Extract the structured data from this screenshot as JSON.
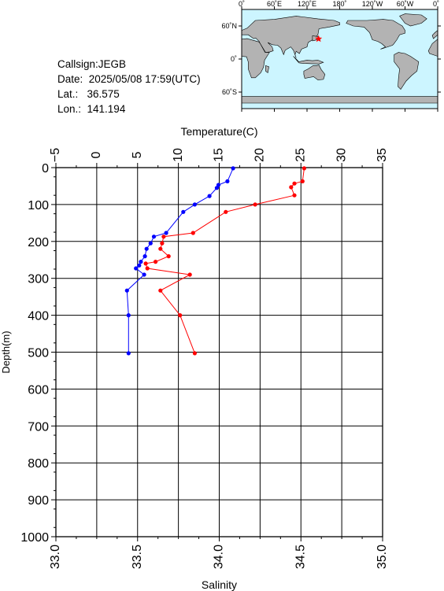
{
  "station": {
    "callsign": "Callsign:JEGB",
    "date": "Date:  2025/05/08 17:59(UTC)",
    "lat": "Lat.:   36.575",
    "lon": "Lon.:  141.194"
  },
  "map": {
    "lon_labels": [
      "0˚",
      "60˚E",
      "120˚E",
      "180˚",
      "120˚W",
      "60˚W",
      "0˚"
    ],
    "lat_labels": [
      "60˚N",
      "0˚",
      "60˚S"
    ],
    "marker": {
      "lat": 36.575,
      "lon": 141.194,
      "color": "#ff0000"
    },
    "ocean_color": "#ccf5ff",
    "land_color": "#b3b3b3"
  },
  "chart_data": {
    "type": "line",
    "ylabel": "Depth(m)",
    "ylim": [
      0,
      1000
    ],
    "y_ticks": [
      "0",
      "100",
      "200",
      "300",
      "400",
      "500",
      "600",
      "700",
      "800",
      "900",
      "1000"
    ],
    "top_axis": {
      "label": "Temperature(C)",
      "lim": [
        -5,
        35
      ],
      "ticks": [
        "−5",
        "0",
        "5",
        "10",
        "15",
        "20",
        "25",
        "30",
        "35"
      ]
    },
    "bottom_axis": {
      "label": "Salinity",
      "lim": [
        33.0,
        35.0
      ],
      "ticks": [
        "33.0",
        "33.5",
        "34.0",
        "34.5",
        "35.0"
      ]
    },
    "grid": true,
    "series": [
      {
        "axis": "top",
        "color": "#0000ff",
        "points": [
          [
            16.7,
            2
          ],
          [
            16.0,
            37
          ],
          [
            14.9,
            47
          ],
          [
            14.7,
            55
          ],
          [
            13.8,
            77
          ],
          [
            12.0,
            100
          ],
          [
            10.6,
            120
          ],
          [
            8.5,
            177
          ],
          [
            7.0,
            187
          ],
          [
            6.6,
            205
          ],
          [
            6.1,
            220
          ],
          [
            5.9,
            240
          ],
          [
            5.4,
            255
          ],
          [
            5.2,
            265
          ],
          [
            4.8,
            273
          ],
          [
            5.8,
            290
          ],
          [
            3.7,
            333
          ],
          [
            3.9,
            400
          ],
          [
            3.9,
            503
          ]
        ]
      },
      {
        "axis": "bottom",
        "color": "#ff0000",
        "points": [
          [
            34.52,
            2
          ],
          [
            34.51,
            37
          ],
          [
            34.46,
            43
          ],
          [
            34.44,
            53
          ],
          [
            34.46,
            75
          ],
          [
            34.22,
            100
          ],
          [
            34.04,
            120
          ],
          [
            33.84,
            177
          ],
          [
            33.66,
            187
          ],
          [
            33.65,
            205
          ],
          [
            33.64,
            220
          ],
          [
            33.69,
            240
          ],
          [
            33.61,
            255
          ],
          [
            33.55,
            260
          ],
          [
            33.56,
            273
          ],
          [
            33.82,
            290
          ],
          [
            33.64,
            333
          ],
          [
            33.76,
            400
          ],
          [
            33.85,
            503
          ]
        ]
      }
    ]
  }
}
